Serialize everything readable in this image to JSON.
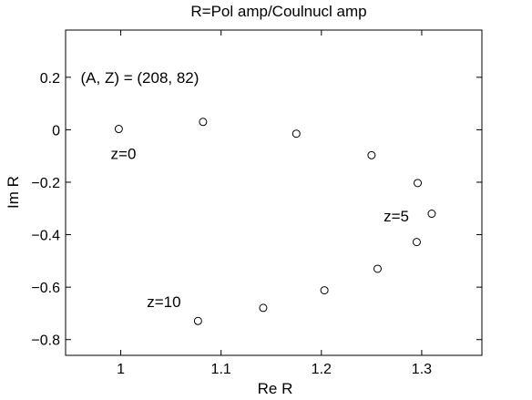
{
  "chart_data": {
    "type": "scatter",
    "title": "R=Pol amp/Coulnucl amp",
    "xlabel": "Re R",
    "ylabel": "Im R",
    "xlim": [
      0.945,
      1.36
    ],
    "ylim": [
      -0.86,
      0.38
    ],
    "xticks": [
      1,
      1.1,
      1.2,
      1.3
    ],
    "xtick_labels": [
      "1",
      "1.1",
      "1.2",
      "1.3"
    ],
    "yticks": [
      0.2,
      0,
      -0.2,
      -0.4,
      -0.6,
      -0.8
    ],
    "ytick_labels": [
      "0.2",
      "0",
      "−0.2",
      "−0.4",
      "−0.6",
      "−0.8"
    ],
    "grid": false,
    "marker": "open-circle",
    "points": [
      {
        "x": 0.998,
        "y": 0.003
      },
      {
        "x": 1.082,
        "y": 0.03
      },
      {
        "x": 1.175,
        "y": -0.015
      },
      {
        "x": 1.25,
        "y": -0.097
      },
      {
        "x": 1.296,
        "y": -0.203
      },
      {
        "x": 1.31,
        "y": -0.32
      },
      {
        "x": 1.295,
        "y": -0.428
      },
      {
        "x": 1.256,
        "y": -0.53
      },
      {
        "x": 1.203,
        "y": -0.612
      },
      {
        "x": 1.142,
        "y": -0.679
      },
      {
        "x": 1.077,
        "y": -0.729
      }
    ],
    "annotations": [
      {
        "text": "(A, Z) = (208, 82)",
        "x": 0.96,
        "y": 0.2
      },
      {
        "text": "z=0",
        "x": 0.99,
        "y": -0.09
      },
      {
        "text": "z=5",
        "x": 1.262,
        "y": -0.328
      },
      {
        "text": "z=10",
        "x": 1.026,
        "y": -0.655
      }
    ]
  }
}
